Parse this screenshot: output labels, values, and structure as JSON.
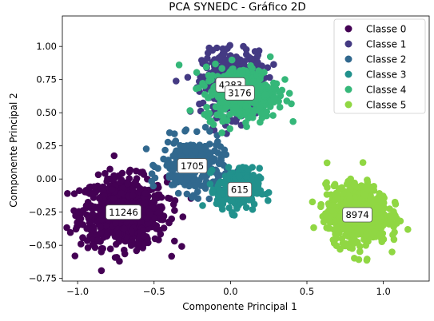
{
  "chart_data": {
    "type": "scatter",
    "title": "PCA SYNEDC - Gráfico 2D",
    "xlabel": "Componente Principal 1",
    "ylabel": "Componente Principal 2",
    "xlim": [
      -1.1,
      1.3
    ],
    "ylim": [
      -0.77,
      1.23
    ],
    "x_ticks": [
      -1.0,
      -0.5,
      0.0,
      0.5,
      1.0
    ],
    "x_tick_labels": [
      "−1.0",
      "−0.5",
      "0.0",
      "0.5",
      "1.0"
    ],
    "y_ticks": [
      -0.75,
      -0.5,
      -0.25,
      0.0,
      0.25,
      0.5,
      0.75,
      1.0
    ],
    "y_tick_labels": [
      "−0.75",
      "−0.50",
      "−0.25",
      "0.00",
      "0.25",
      "0.50",
      "0.75",
      "1.00"
    ],
    "grid": false,
    "legend_position": "top-right",
    "series": [
      {
        "name": "Classe 0",
        "color": "#440154",
        "count": 11246,
        "center": [
          -0.7,
          -0.25
        ],
        "spread": [
          0.14,
          0.13
        ],
        "label_pos": [
          -0.7,
          -0.25
        ]
      },
      {
        "name": "Classe 1",
        "color": "#443a83",
        "count": 4283,
        "center": [
          0.02,
          0.72
        ],
        "spread": [
          0.1,
          0.12
        ],
        "label_pos": [
          0.0,
          0.71
        ]
      },
      {
        "name": "Classe 2",
        "color": "#31688e",
        "count": 1705,
        "center": [
          -0.25,
          0.1
        ],
        "spread": [
          0.1,
          0.1
        ],
        "label_pos": [
          -0.25,
          0.1
        ]
      },
      {
        "name": "Classe 3",
        "color": "#21918c",
        "count": 615,
        "center": [
          0.05,
          -0.08
        ],
        "spread": [
          0.07,
          0.08
        ],
        "label_pos": [
          0.06,
          -0.08
        ]
      },
      {
        "name": "Classe 4",
        "color": "#35b779",
        "count": 3176,
        "center": [
          0.07,
          0.65
        ],
        "spread": [
          0.12,
          0.1
        ],
        "label_pos": [
          0.06,
          0.65
        ]
      },
      {
        "name": "Classe 5",
        "color": "#90d743",
        "count": 8974,
        "center": [
          0.83,
          -0.27
        ],
        "spread": [
          0.1,
          0.11
        ],
        "label_pos": [
          0.83,
          -0.27
        ]
      }
    ]
  }
}
